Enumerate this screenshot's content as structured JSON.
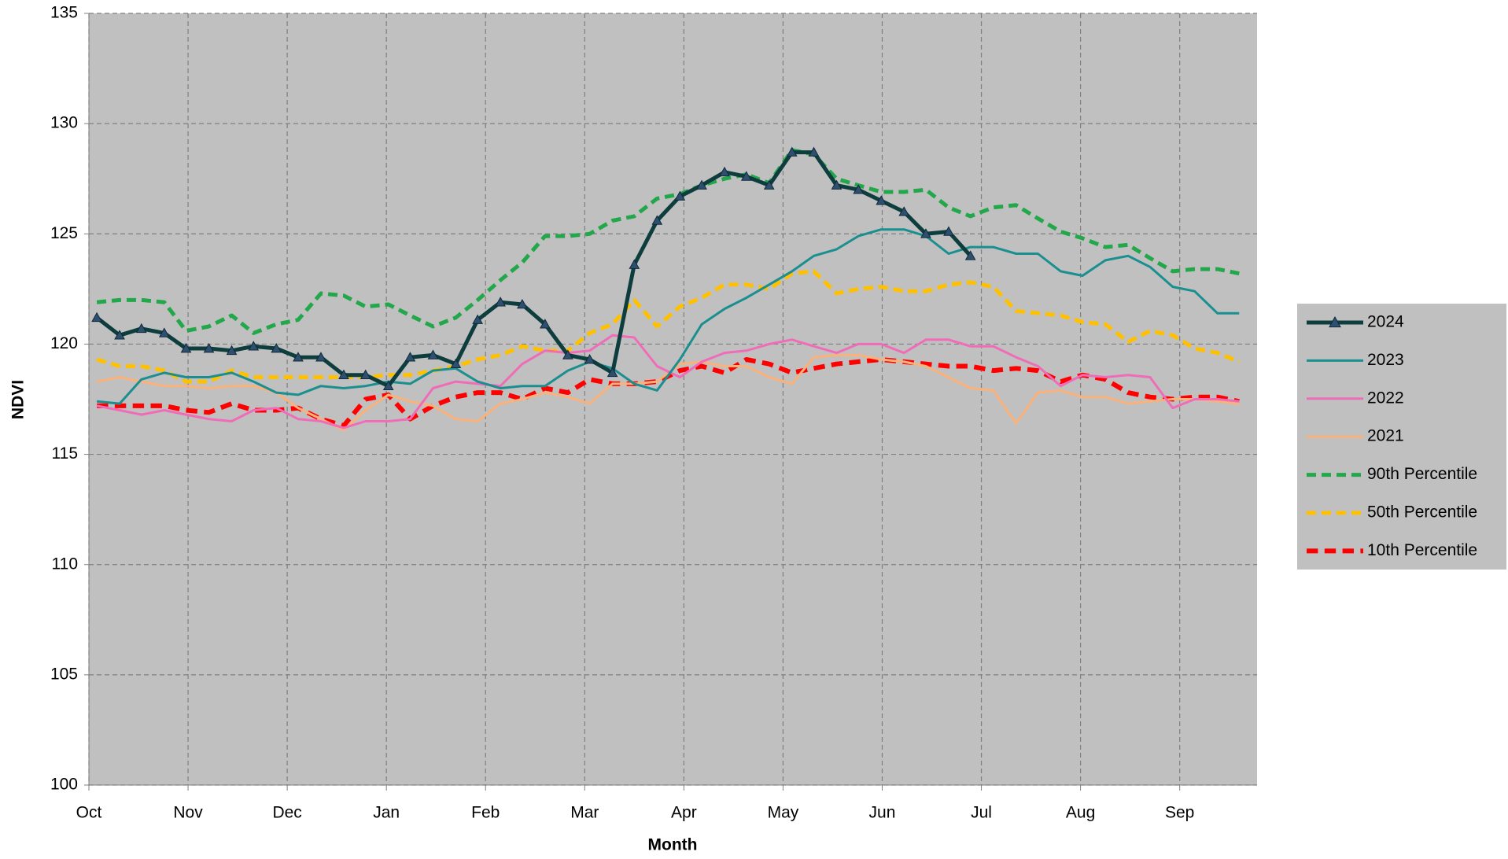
{
  "chart_data": {
    "type": "line",
    "x_label": "Month",
    "y_label": "NDVI",
    "x": [
      0.08,
      0.31,
      0.53,
      0.76,
      0.98,
      1.21,
      1.44,
      1.66,
      1.89,
      2.11,
      2.34,
      2.57,
      2.79,
      3.02,
      3.24,
      3.47,
      3.7,
      3.92,
      4.15,
      4.37,
      4.6,
      4.83,
      5.05,
      5.28,
      5.5,
      5.73,
      5.96,
      6.18,
      6.41,
      6.63,
      6.86,
      7.09,
      7.31,
      7.54,
      7.76,
      7.99,
      8.22,
      8.44,
      8.67,
      8.89,
      9.12,
      9.35,
      9.57,
      9.8,
      10.02,
      10.25,
      10.48,
      10.7,
      10.93,
      11.15,
      11.38,
      11.6
    ],
    "xlim": [
      0,
      11.78
    ],
    "xticks": [
      {
        "value": 0,
        "label": "Oct"
      },
      {
        "value": 1,
        "label": "Nov"
      },
      {
        "value": 2,
        "label": "Dec"
      },
      {
        "value": 3,
        "label": "Jan"
      },
      {
        "value": 4,
        "label": "Feb"
      },
      {
        "value": 5,
        "label": "Mar"
      },
      {
        "value": 6,
        "label": "Apr"
      },
      {
        "value": 7,
        "label": "May"
      },
      {
        "value": 8,
        "label": "Jun"
      },
      {
        "value": 9,
        "label": "Jul"
      },
      {
        "value": 10,
        "label": "Aug"
      },
      {
        "value": 11,
        "label": "Sep"
      }
    ],
    "ylim": [
      100,
      135
    ],
    "yticks": [
      100,
      105,
      110,
      115,
      120,
      125,
      130,
      135
    ],
    "grid": true,
    "plot_background": "#c0c0c0",
    "legend": "right",
    "series": [
      {
        "name": "2024",
        "color": "#0e3d3d",
        "width": 5,
        "marker": "triangle",
        "marker_color": "#2e4f6e",
        "values": [
          121.2,
          120.4,
          120.7,
          120.5,
          119.8,
          119.8,
          119.7,
          119.9,
          119.8,
          119.4,
          119.4,
          118.6,
          118.6,
          118.1,
          119.4,
          119.5,
          119.1,
          121.1,
          121.9,
          121.8,
          120.9,
          119.5,
          119.3,
          118.7,
          123.6,
          125.6,
          126.7,
          127.2,
          127.8,
          127.6,
          127.2,
          128.7,
          128.7,
          127.2,
          127.0,
          126.5,
          126.0,
          125.0,
          125.1,
          124.0,
          null,
          null,
          null,
          null,
          null,
          null,
          null,
          null,
          null,
          null,
          null,
          null
        ]
      },
      {
        "name": "2023",
        "color": "#1b8f8f",
        "width": 3,
        "values": [
          117.4,
          117.3,
          118.4,
          118.7,
          118.5,
          118.5,
          118.7,
          118.3,
          117.8,
          117.7,
          118.1,
          118.0,
          118.1,
          118.3,
          118.2,
          118.8,
          118.9,
          118.3,
          118.0,
          118.1,
          118.1,
          118.8,
          119.2,
          118.9,
          118.2,
          117.9,
          119.3,
          120.9,
          121.6,
          122.1,
          122.7,
          123.3,
          124.0,
          124.3,
          124.9,
          125.2,
          125.2,
          124.9,
          124.1,
          124.4,
          124.4,
          124.1,
          124.1,
          123.3,
          123.1,
          123.8,
          124.0,
          123.5,
          122.6,
          122.4,
          121.4,
          121.4
        ]
      },
      {
        "name": "2022",
        "color": "#f06cb8",
        "width": 3,
        "values": [
          117.2,
          117.0,
          116.8,
          117.0,
          116.8,
          116.6,
          116.5,
          117.0,
          117.1,
          116.6,
          116.5,
          116.2,
          116.5,
          116.5,
          116.6,
          118.0,
          118.3,
          118.2,
          118.1,
          119.1,
          119.7,
          119.6,
          119.7,
          120.4,
          120.3,
          119.0,
          118.5,
          119.2,
          119.6,
          119.7,
          120.0,
          120.2,
          119.9,
          119.6,
          120.0,
          120.0,
          119.6,
          120.2,
          120.2,
          119.9,
          119.9,
          119.4,
          119.0,
          118.1,
          118.6,
          118.5,
          118.6,
          118.5,
          117.1,
          117.5,
          117.5,
          117.4
        ]
      },
      {
        "name": "2021",
        "color": "#fab27a",
        "width": 3,
        "values": [
          118.3,
          118.5,
          118.3,
          118.1,
          118.1,
          118.0,
          118.1,
          118.1,
          117.8,
          117.1,
          116.6,
          116.1,
          117.0,
          117.7,
          117.4,
          117.2,
          116.6,
          116.5,
          117.3,
          117.5,
          117.8,
          117.6,
          117.3,
          118.2,
          118.2,
          118.3,
          119.1,
          119.2,
          119.0,
          119.0,
          118.5,
          118.2,
          119.4,
          119.5,
          119.5,
          119.3,
          119.2,
          119.0,
          118.5,
          118.0,
          117.9,
          116.4,
          117.8,
          117.9,
          117.6,
          117.6,
          117.3,
          117.4,
          117.5,
          117.5,
          117.4,
          117.3
        ]
      },
      {
        "name": "90th Percentile",
        "color": "#22a84a",
        "width": 5,
        "dashed": true,
        "values": [
          121.9,
          122.0,
          122.0,
          121.9,
          120.6,
          120.8,
          121.3,
          120.5,
          120.9,
          121.1,
          122.3,
          122.2,
          121.7,
          121.8,
          121.3,
          120.8,
          121.2,
          122.0,
          122.9,
          123.7,
          124.9,
          124.9,
          125.0,
          125.6,
          125.8,
          126.6,
          126.8,
          127.2,
          127.5,
          127.7,
          127.3,
          128.8,
          128.6,
          127.5,
          127.2,
          126.9,
          126.9,
          127.0,
          126.2,
          125.8,
          126.2,
          126.3,
          125.7,
          125.1,
          124.8,
          124.4,
          124.5,
          123.9,
          123.3,
          123.4,
          123.4,
          123.2
        ]
      },
      {
        "name": "50th Percentile",
        "color": "#ffc000",
        "width": 5,
        "dashed": true,
        "values": [
          119.3,
          119.0,
          119.0,
          118.8,
          118.3,
          118.3,
          118.8,
          118.5,
          118.5,
          118.5,
          118.5,
          118.5,
          118.5,
          118.6,
          118.6,
          118.8,
          119.0,
          119.3,
          119.5,
          119.9,
          119.7,
          119.7,
          120.5,
          120.9,
          122.0,
          120.8,
          121.7,
          122.1,
          122.7,
          122.7,
          122.5,
          123.2,
          123.3,
          122.3,
          122.5,
          122.6,
          122.4,
          122.4,
          122.7,
          122.8,
          122.6,
          121.5,
          121.4,
          121.3,
          121.0,
          120.9,
          120.1,
          120.6,
          120.4,
          119.8,
          119.6,
          119.2
        ]
      },
      {
        "name": "10th Percentile",
        "color": "#ff0000",
        "width": 6,
        "dashed": true,
        "values": [
          117.2,
          117.2,
          117.2,
          117.2,
          117.0,
          116.9,
          117.3,
          117.0,
          117.0,
          117.1,
          116.6,
          116.3,
          117.5,
          117.7,
          116.6,
          117.2,
          117.6,
          117.8,
          117.8,
          117.5,
          118.0,
          117.8,
          118.4,
          118.2,
          118.2,
          118.3,
          118.8,
          119.0,
          118.7,
          119.3,
          119.1,
          118.7,
          118.9,
          119.1,
          119.2,
          119.3,
          119.2,
          119.1,
          119.0,
          119.0,
          118.8,
          118.9,
          118.8,
          118.3,
          118.6,
          118.4,
          117.8,
          117.6,
          117.5,
          117.6,
          117.6,
          117.4
        ]
      }
    ]
  }
}
